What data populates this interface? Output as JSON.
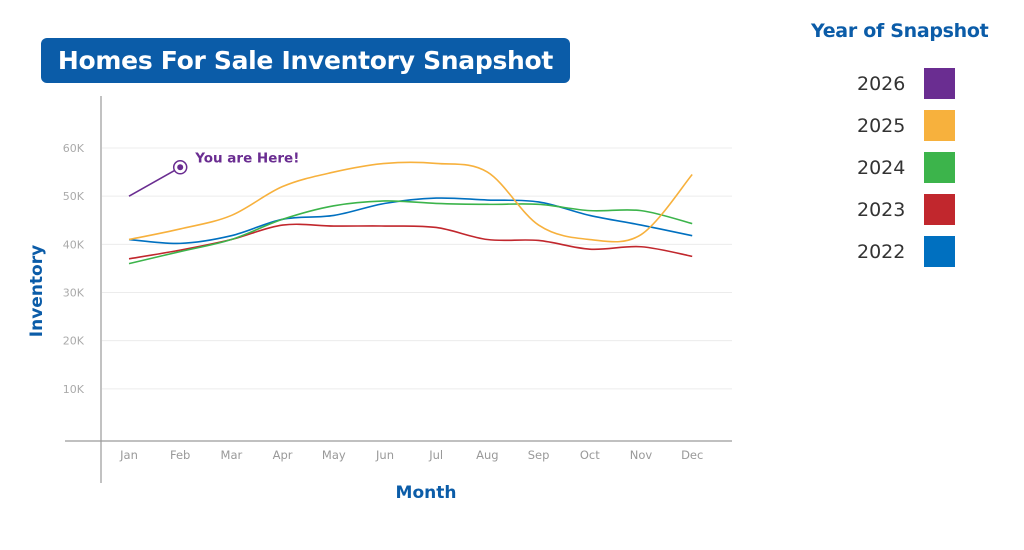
{
  "chart_data": {
    "type": "line",
    "title": "Homes For Sale Inventory Snapshot",
    "xlabel": "Month",
    "ylabel": "Inventory",
    "categories": [
      "Jan",
      "Feb",
      "Mar",
      "Apr",
      "May",
      "Jun",
      "Jul",
      "Aug",
      "Sep",
      "Oct",
      "Nov",
      "Dec"
    ],
    "yticks": [
      "10K",
      "20K",
      "30K",
      "40K",
      "50K",
      "60K"
    ],
    "ylim": [
      0,
      60000
    ],
    "grid": true,
    "legend": {
      "title": "Year of Snapshot",
      "placement": "right"
    },
    "series": [
      {
        "name": "2026",
        "color": "#6a2d91",
        "values": [
          50000,
          56000,
          null,
          null,
          null,
          null,
          null,
          null,
          null,
          null,
          null,
          null
        ]
      },
      {
        "name": "2025",
        "color": "#f7b13d",
        "values": [
          41000,
          43200,
          46000,
          52000,
          55000,
          56800,
          56800,
          55000,
          44000,
          41000,
          42000,
          54500
        ]
      },
      {
        "name": "2024",
        "color": "#3cb44b",
        "values": [
          36000,
          38500,
          41000,
          45200,
          48000,
          49000,
          48500,
          48300,
          48300,
          47000,
          47000,
          44300
        ]
      },
      {
        "name": "2023",
        "color": "#c1272d",
        "values": [
          37000,
          38800,
          41000,
          44000,
          43800,
          43800,
          43500,
          41000,
          40800,
          39000,
          39500,
          37500
        ]
      },
      {
        "name": "2022",
        "color": "#0070c0",
        "values": [
          41000,
          40200,
          41800,
          45200,
          46000,
          48500,
          49600,
          49200,
          48800,
          46000,
          44000,
          41800
        ]
      }
    ],
    "annotation": {
      "text": "You are Here!",
      "series": "2026",
      "category": "Feb",
      "color": "#6a2d91"
    }
  }
}
